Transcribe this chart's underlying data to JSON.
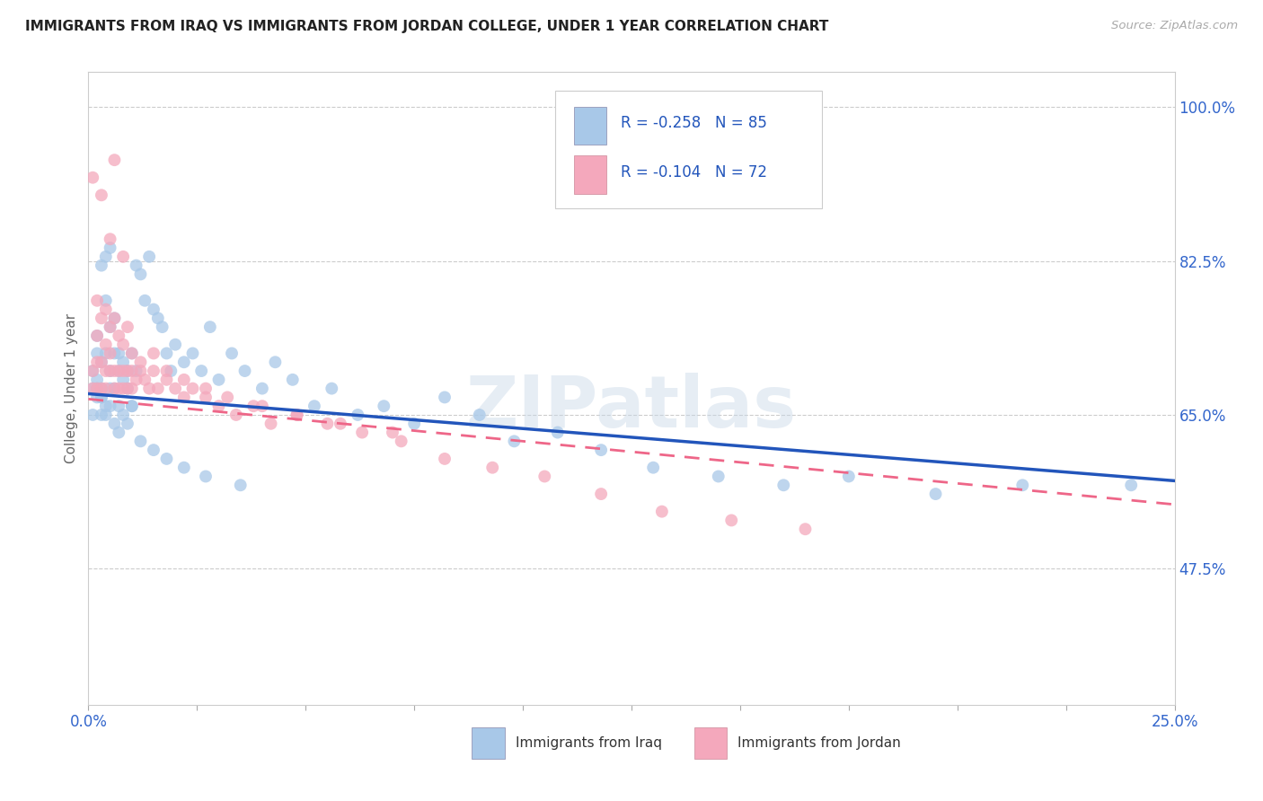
{
  "title": "IMMIGRANTS FROM IRAQ VS IMMIGRANTS FROM JORDAN COLLEGE, UNDER 1 YEAR CORRELATION CHART",
  "source": "Source: ZipAtlas.com",
  "ylabel": "College, Under 1 year",
  "xlim": [
    0.0,
    0.25
  ],
  "ylim": [
    0.32,
    1.04
  ],
  "yticks_right": [
    1.0,
    0.825,
    0.65,
    0.475
  ],
  "yticklabels_right": [
    "100.0%",
    "82.5%",
    "65.0%",
    "47.5%"
  ],
  "iraq_color": "#a8c8e8",
  "jordan_color": "#f4a8bc",
  "iraq_line_color": "#2255bb",
  "jordan_line_color": "#ee6688",
  "legend_text_color": "#2255bb",
  "iraq_R": -0.258,
  "iraq_N": 85,
  "jordan_R": -0.104,
  "jordan_N": 72,
  "watermark": "ZIPatlas",
  "iraq_line_x0": 0.0,
  "iraq_line_y0": 0.674,
  "iraq_line_x1": 0.25,
  "iraq_line_y1": 0.575,
  "jordan_line_x0": 0.0,
  "jordan_line_y0": 0.668,
  "jordan_line_x1": 0.25,
  "jordan_line_y1": 0.548,
  "iraq_scatter_x": [
    0.001,
    0.001,
    0.001,
    0.002,
    0.002,
    0.002,
    0.002,
    0.003,
    0.003,
    0.003,
    0.003,
    0.003,
    0.004,
    0.004,
    0.004,
    0.004,
    0.005,
    0.005,
    0.005,
    0.005,
    0.006,
    0.006,
    0.006,
    0.007,
    0.007,
    0.007,
    0.008,
    0.008,
    0.009,
    0.009,
    0.01,
    0.01,
    0.011,
    0.011,
    0.012,
    0.013,
    0.014,
    0.015,
    0.016,
    0.017,
    0.018,
    0.019,
    0.02,
    0.022,
    0.024,
    0.026,
    0.028,
    0.03,
    0.033,
    0.036,
    0.04,
    0.043,
    0.047,
    0.052,
    0.056,
    0.062,
    0.068,
    0.075,
    0.082,
    0.09,
    0.098,
    0.108,
    0.118,
    0.13,
    0.145,
    0.16,
    0.175,
    0.195,
    0.215,
    0.24,
    0.002,
    0.003,
    0.004,
    0.005,
    0.006,
    0.007,
    0.008,
    0.009,
    0.01,
    0.012,
    0.015,
    0.018,
    0.022,
    0.027,
    0.035
  ],
  "iraq_scatter_y": [
    0.68,
    0.7,
    0.65,
    0.72,
    0.69,
    0.67,
    0.74,
    0.68,
    0.71,
    0.67,
    0.82,
    0.65,
    0.78,
    0.72,
    0.66,
    0.83,
    0.75,
    0.7,
    0.68,
    0.84,
    0.72,
    0.68,
    0.76,
    0.7,
    0.72,
    0.66,
    0.71,
    0.69,
    0.7,
    0.68,
    0.72,
    0.66,
    0.82,
    0.7,
    0.81,
    0.78,
    0.83,
    0.77,
    0.76,
    0.75,
    0.72,
    0.7,
    0.73,
    0.71,
    0.72,
    0.7,
    0.75,
    0.69,
    0.72,
    0.7,
    0.68,
    0.71,
    0.69,
    0.66,
    0.68,
    0.65,
    0.66,
    0.64,
    0.67,
    0.65,
    0.62,
    0.63,
    0.61,
    0.59,
    0.58,
    0.57,
    0.58,
    0.56,
    0.57,
    0.57,
    0.68,
    0.67,
    0.65,
    0.66,
    0.64,
    0.63,
    0.65,
    0.64,
    0.66,
    0.62,
    0.61,
    0.6,
    0.59,
    0.58,
    0.57
  ],
  "jordan_scatter_x": [
    0.001,
    0.001,
    0.001,
    0.002,
    0.002,
    0.002,
    0.003,
    0.003,
    0.003,
    0.004,
    0.004,
    0.004,
    0.005,
    0.005,
    0.005,
    0.006,
    0.006,
    0.006,
    0.007,
    0.007,
    0.008,
    0.008,
    0.008,
    0.009,
    0.009,
    0.01,
    0.01,
    0.011,
    0.012,
    0.013,
    0.014,
    0.015,
    0.016,
    0.018,
    0.02,
    0.022,
    0.024,
    0.027,
    0.03,
    0.034,
    0.038,
    0.042,
    0.048,
    0.055,
    0.063,
    0.072,
    0.082,
    0.093,
    0.105,
    0.118,
    0.132,
    0.148,
    0.165,
    0.002,
    0.003,
    0.004,
    0.005,
    0.006,
    0.007,
    0.008,
    0.009,
    0.01,
    0.012,
    0.015,
    0.018,
    0.022,
    0.027,
    0.032,
    0.04,
    0.048,
    0.058,
    0.07
  ],
  "jordan_scatter_y": [
    0.7,
    0.68,
    0.92,
    0.71,
    0.68,
    0.74,
    0.68,
    0.71,
    0.9,
    0.7,
    0.73,
    0.68,
    0.7,
    0.72,
    0.85,
    0.7,
    0.68,
    0.94,
    0.7,
    0.68,
    0.7,
    0.83,
    0.68,
    0.7,
    0.68,
    0.7,
    0.68,
    0.69,
    0.71,
    0.69,
    0.68,
    0.7,
    0.68,
    0.69,
    0.68,
    0.67,
    0.68,
    0.67,
    0.66,
    0.65,
    0.66,
    0.64,
    0.65,
    0.64,
    0.63,
    0.62,
    0.6,
    0.59,
    0.58,
    0.56,
    0.54,
    0.53,
    0.52,
    0.78,
    0.76,
    0.77,
    0.75,
    0.76,
    0.74,
    0.73,
    0.75,
    0.72,
    0.7,
    0.72,
    0.7,
    0.69,
    0.68,
    0.67,
    0.66,
    0.65,
    0.64,
    0.63
  ]
}
